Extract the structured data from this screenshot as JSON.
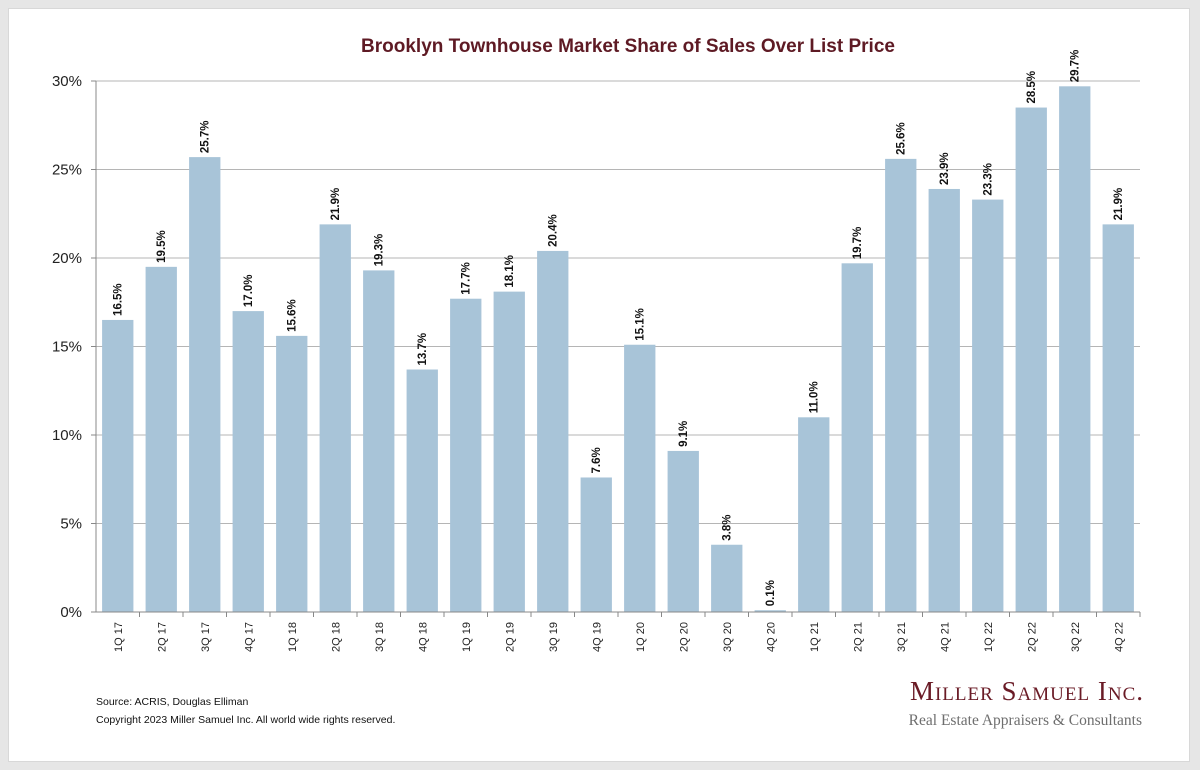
{
  "chart_data": {
    "type": "bar",
    "title": "Brooklyn Townhouse Market Share of Sales Over List Price",
    "xlabel": "",
    "ylabel": "",
    "categories": [
      "1Q 17",
      "2Q 17",
      "3Q 17",
      "4Q 17",
      "1Q 18",
      "2Q 18",
      "3Q 18",
      "4Q 18",
      "1Q 19",
      "2Q 19",
      "3Q 19",
      "4Q 19",
      "1Q 20",
      "2Q 20",
      "3Q 20",
      "4Q 20",
      "1Q 21",
      "2Q 21",
      "3Q 21",
      "4Q 21",
      "1Q 22",
      "2Q 22",
      "3Q 22",
      "4Q 22"
    ],
    "values": [
      16.5,
      19.5,
      25.7,
      17.0,
      15.6,
      21.9,
      19.3,
      13.7,
      17.7,
      18.1,
      20.4,
      7.6,
      15.1,
      9.1,
      3.8,
      0.1,
      11.0,
      19.7,
      25.6,
      23.9,
      23.3,
      28.5,
      29.7,
      21.9
    ],
    "data_labels": [
      "16.5%",
      "19.5%",
      "25.7%",
      "17.0%",
      "15.6%",
      "21.9%",
      "19.3%",
      "13.7%",
      "17.7%",
      "18.1%",
      "20.4%",
      "7.6%",
      "15.1%",
      "9.1%",
      "3.8%",
      "0.1%",
      "11.0%",
      "19.7%",
      "25.6%",
      "23.9%",
      "23.3%",
      "28.5%",
      "29.7%",
      "21.9%"
    ],
    "ylim": [
      0,
      30
    ],
    "y_ticks": [
      0,
      5,
      10,
      15,
      20,
      25,
      30
    ],
    "y_tick_labels": [
      "0%",
      "5%",
      "10%",
      "15%",
      "20%",
      "25%",
      "30%"
    ],
    "grid": true,
    "bar_color": "#a8c4d8"
  },
  "footer": {
    "source": "Source: ACRIS, Douglas Elliman",
    "copyright": "Copyright 2023 Miller Samuel Inc.  All world wide rights reserved."
  },
  "logo": {
    "name": "Miller Samuel Inc.",
    "tagline": "Real Estate Appraisers & Consultants"
  }
}
